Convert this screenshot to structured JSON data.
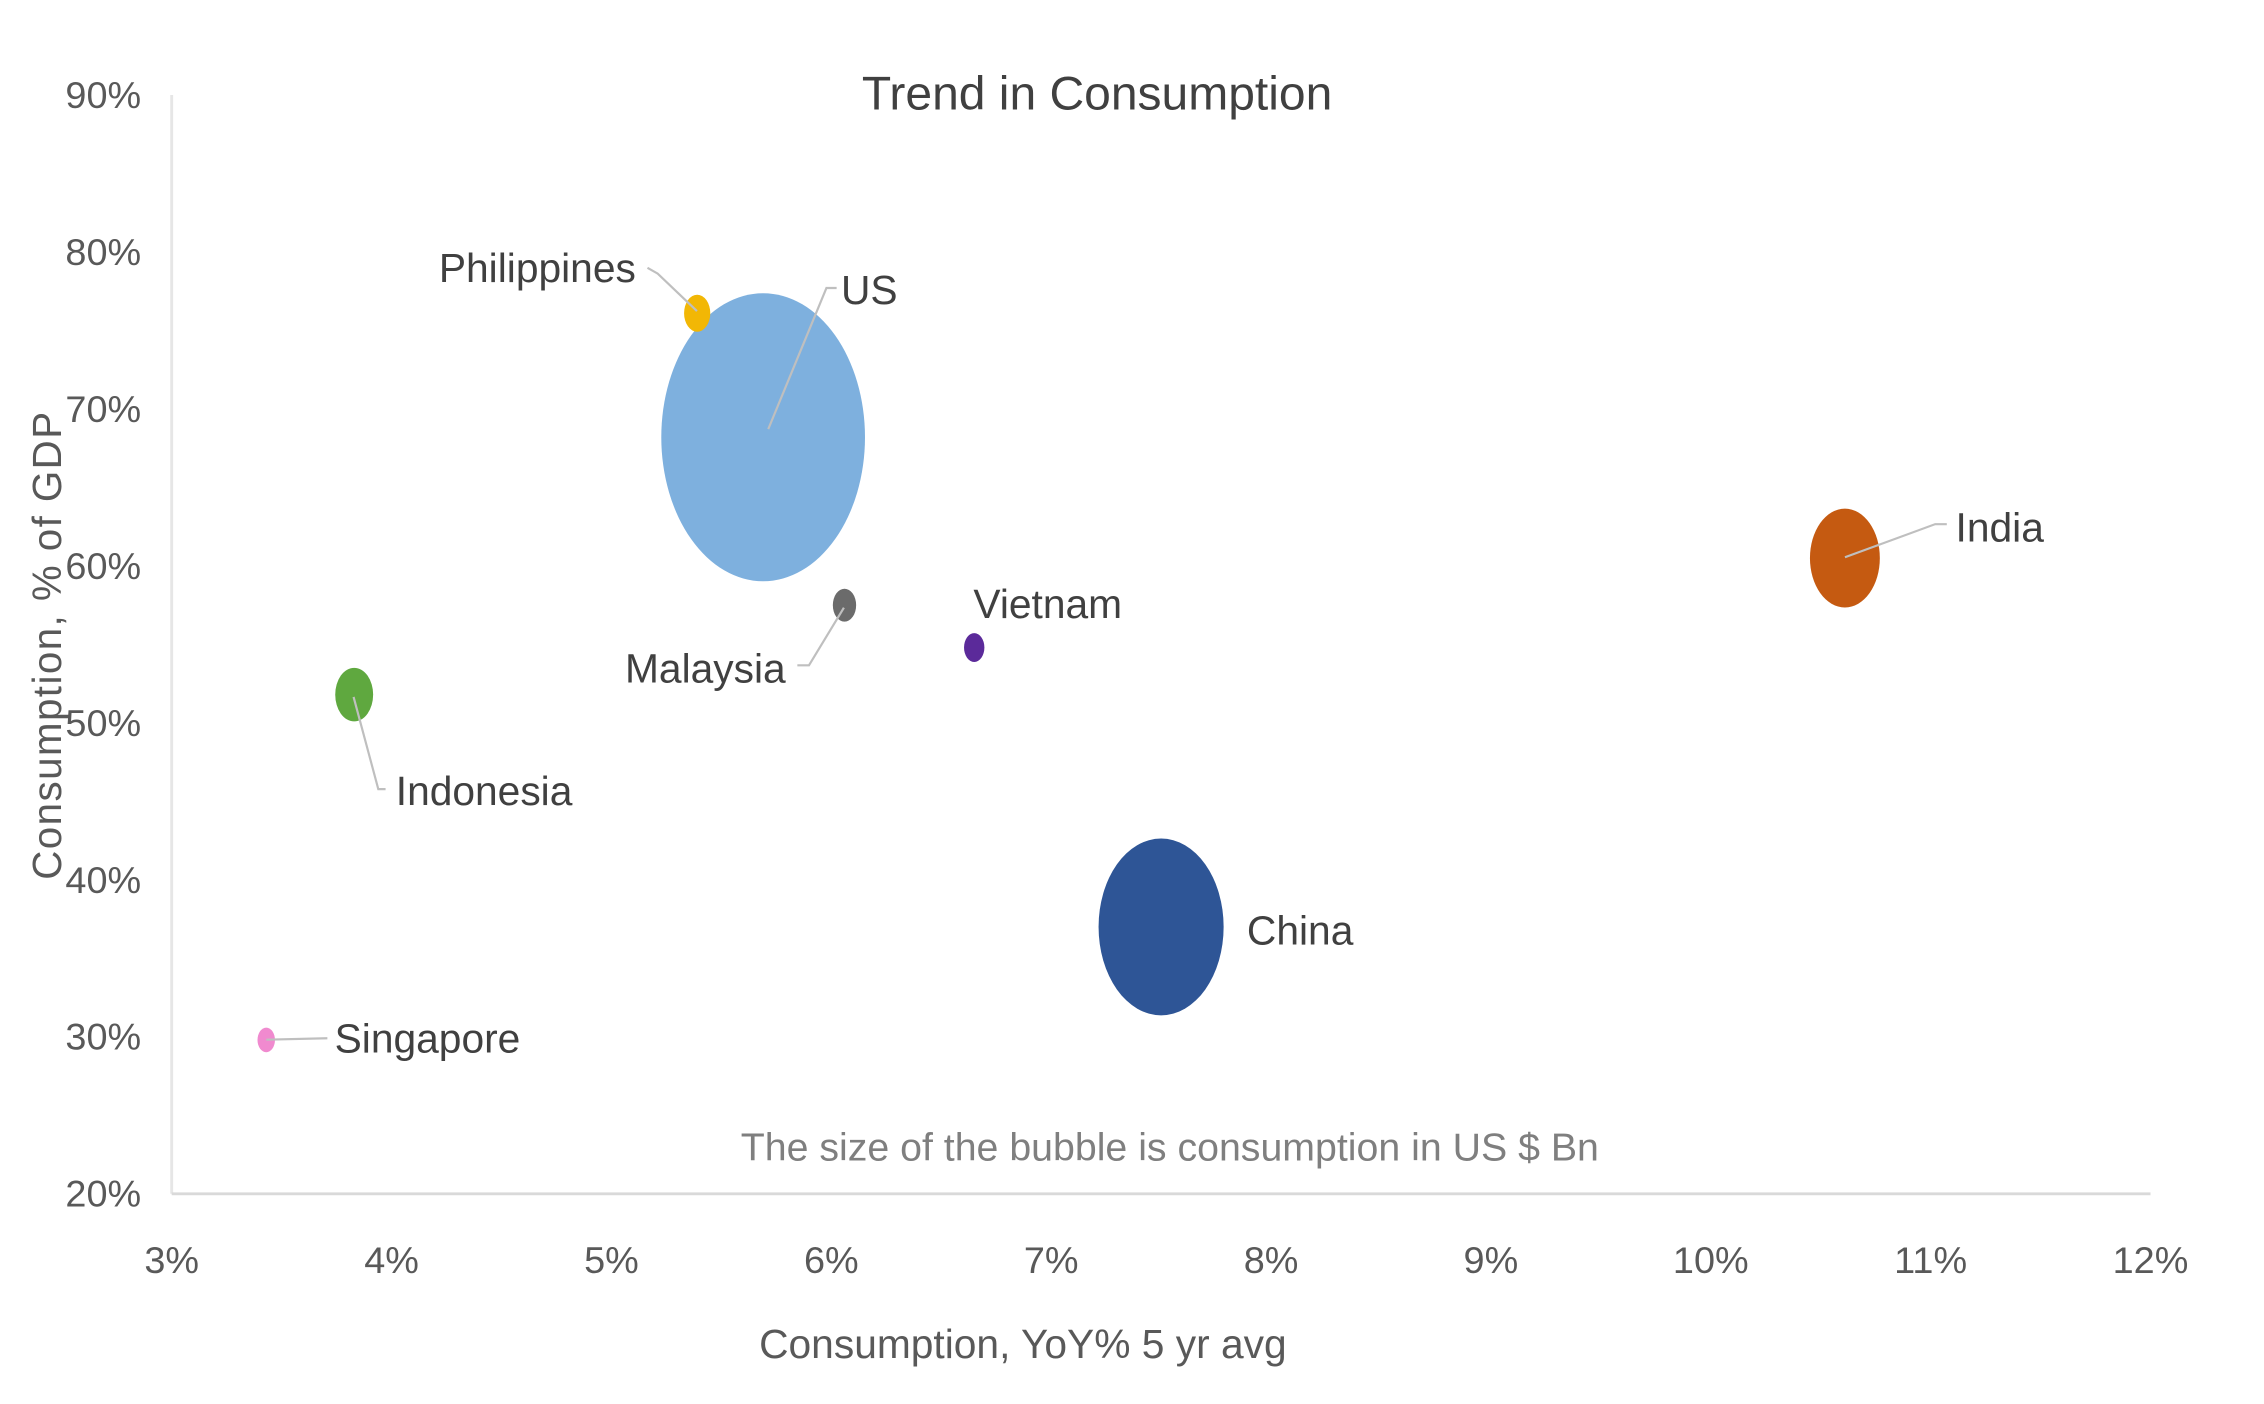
{
  "chart_data": {
    "type": "bubble",
    "title": "Trend in Consumption",
    "xlabel": "Consumption, YoY% 5 yr avg",
    "ylabel": "Consumption, % of GDP",
    "annotation": "The size of the bubble is consumption in US $ Bn",
    "xlim": [
      3,
      12
    ],
    "ylim": [
      20,
      90
    ],
    "x_ticks": [
      "3%",
      "4%",
      "5%",
      "6%",
      "7%",
      "8%",
      "9%",
      "10%",
      "11%",
      "12%"
    ],
    "y_ticks": [
      "20%",
      "30%",
      "40%",
      "50%",
      "60%",
      "70%",
      "80%",
      "90%"
    ],
    "grid": false,
    "legend": "none",
    "points": [
      {
        "label": "US",
        "x": 5.69,
        "y": 68.2,
        "size": 13000,
        "color": "#7EB0DE"
      },
      {
        "label": "Philippines",
        "x": 5.39,
        "y": 76.1,
        "size": 215,
        "color": "#F2B705"
      },
      {
        "label": "Malaysia",
        "x": 6.06,
        "y": 57.5,
        "size": 170,
        "color": "#6B6B6B"
      },
      {
        "label": "Vietnam",
        "x": 6.65,
        "y": 54.8,
        "size": 130,
        "color": "#5B2A9A"
      },
      {
        "label": "Indonesia",
        "x": 3.83,
        "y": 51.8,
        "size": 450,
        "color": "#5FA83F"
      },
      {
        "label": "China",
        "x": 7.5,
        "y": 37.0,
        "size": 4900,
        "color": "#2E5596"
      },
      {
        "label": "India",
        "x": 10.61,
        "y": 60.5,
        "size": 1530,
        "color": "#C55A11"
      },
      {
        "label": "Singapore",
        "x": 3.43,
        "y": 29.8,
        "size": 95,
        "color": "#F08ACF"
      }
    ]
  }
}
